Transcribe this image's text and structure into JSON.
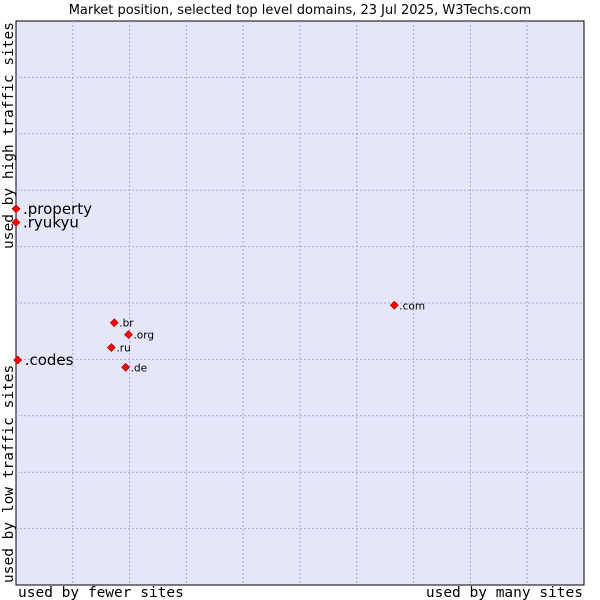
{
  "chart_data": {
    "type": "scatter",
    "title": "Market position, selected top level domains, 23 Jul 2025, W3Techs.com",
    "xlabel_left": "used by fewer sites",
    "xlabel_right": "used by many sites",
    "ylabel_bottom": "used by low traffic sites",
    "ylabel_top": "used by high traffic sites",
    "xlim": [
      0,
      100
    ],
    "ylim": [
      0,
      100
    ],
    "grid": true,
    "colors": {
      "plot_bg": "#e6e6fa",
      "point": "#ff0000",
      "grid": "#a8a8d0"
    },
    "points": [
      {
        "label": ".property",
        "x": 0.0,
        "y": 66.7,
        "emphasis": true
      },
      {
        "label": ".ryukyu",
        "x": 0.0,
        "y": 64.3,
        "emphasis": true
      },
      {
        "label": ".codes",
        "x": 0.3,
        "y": 39.9,
        "emphasis": true
      },
      {
        "label": ".com",
        "x": 66.6,
        "y": 49.6,
        "emphasis": false
      },
      {
        "label": ".br",
        "x": 17.3,
        "y": 46.5,
        "emphasis": false
      },
      {
        "label": ".org",
        "x": 19.8,
        "y": 44.4,
        "emphasis": false
      },
      {
        "label": ".ru",
        "x": 16.8,
        "y": 42.1,
        "emphasis": false
      },
      {
        "label": ".de",
        "x": 19.3,
        "y": 38.6,
        "emphasis": false
      }
    ]
  }
}
